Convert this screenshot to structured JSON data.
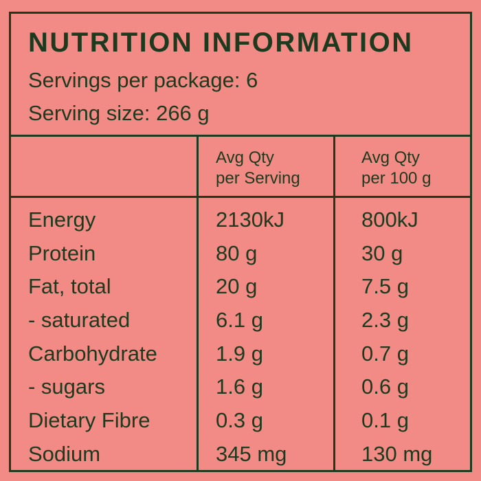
{
  "panel": {
    "title": "NUTRITION INFORMATION",
    "servings_per_package": "Servings per package: 6",
    "serving_size": "Serving size: 266 g"
  },
  "columns": {
    "serving": [
      "Avg Qty",
      "per Serving"
    ],
    "per100": [
      "Avg Qty",
      "per 100 g"
    ]
  },
  "rows": [
    {
      "name": "Energy",
      "serving": "2130kJ",
      "per100": "800kJ"
    },
    {
      "name": "Protein",
      "serving": "80 g",
      "per100": "30 g"
    },
    {
      "name": "Fat, total",
      "serving": "20 g",
      "per100": "7.5 g"
    },
    {
      "name": "- saturated",
      "serving": "6.1 g",
      "per100": "2.3 g"
    },
    {
      "name": "Carbohydrate",
      "serving": "1.9 g",
      "per100": "0.7 g"
    },
    {
      "name": "- sugars",
      "serving": "1.6 g",
      "per100": "0.6 g"
    },
    {
      "name": "Dietary Fibre",
      "serving": "0.3 g",
      "per100": "0.1 g"
    },
    {
      "name": "Sodium",
      "serving": "345 mg",
      "per100": "130 mg"
    }
  ],
  "colors": {
    "background": "#f28b85",
    "ink": "#1e3a1e"
  }
}
